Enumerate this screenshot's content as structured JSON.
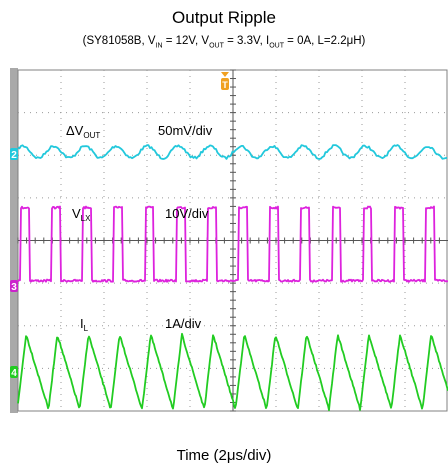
{
  "title": "Output Ripple",
  "subtitle": {
    "part_number": "SY81058B",
    "vin_label": "V",
    "vin_sub": "IN",
    "vin_value": " = 12V, ",
    "vout_label": "V",
    "vout_sub": "OUT",
    "vout_value": " = 3.3V, ",
    "iout_label": "I",
    "iout_sub": "OUT",
    "iout_value": " = 0A, L=2.2μH)"
  },
  "chart_data": {
    "type": "line",
    "title": "Output Ripple",
    "xlabel": "Time (2μs/div)",
    "grid": true,
    "trigger_marker": "T",
    "series": [
      {
        "name": "ΔVOUT",
        "name_main": "ΔV",
        "name_sub": "OUT",
        "channel": "2",
        "scale": "50mV/div",
        "color": "#22c8dc",
        "waveform": "sine",
        "cycles": 13.8,
        "amplitude_div": 0.14
      },
      {
        "name": "VLX",
        "name_main": "V",
        "name_sub": "LX",
        "channel": "3",
        "scale": "10V/div",
        "color": "#dd22dd",
        "waveform": "square",
        "cycles": 13.8,
        "duty": 0.28,
        "amplitude_div": 1.3
      },
      {
        "name": "IL",
        "name_main": "I",
        "name_sub": "L",
        "channel": "4",
        "scale": "1A/div",
        "color": "#22cc22",
        "waveform": "triangle",
        "cycles": 13.8,
        "duty": 0.28,
        "amplitude_div": 0.95
      }
    ],
    "channel_colors": {
      "ch2": "#22c8dc",
      "ch3": "#cc22cc",
      "ch4": "#22cc22",
      "trigger": "#f0a020"
    }
  }
}
